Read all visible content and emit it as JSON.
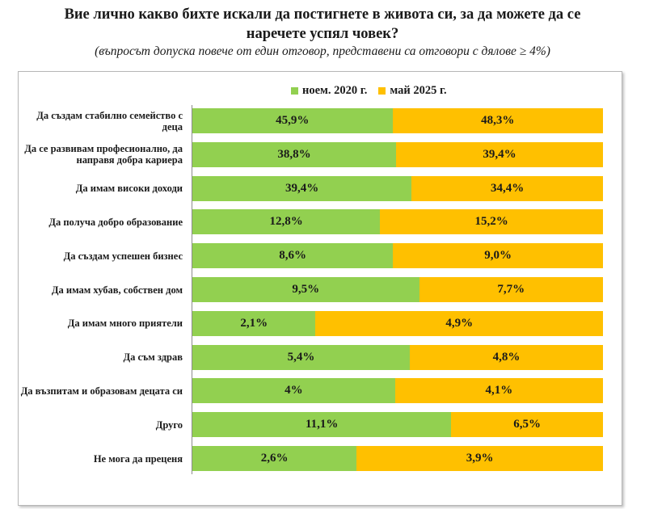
{
  "header": {
    "title_line1": "Вие лично какво бихте искали да постигнете в живота си, за да можете да се",
    "title_line2": "наречете успял човек?",
    "subtitle": "(въпросът допуска повече от един отговор, представени са отговори с дялове ≥ 4%)"
  },
  "chart_data": {
    "type": "bar",
    "orientation": "horizontal",
    "stacked": "100% stacked",
    "legend_position": "top",
    "colors": {
      "2020": "#92d050",
      "2025": "#ffc000"
    },
    "categories": [
      "Да създам стабилно семейство с деца",
      "Да се развивам професионално, да направя добра кариера",
      "Да имам високи доходи",
      "Да получа добро образование",
      "Да създам успешен бизнес",
      "Да имам хубав, собствен дом",
      "Да имам много приятели",
      "Да съм здрав",
      "Да възпитам и образовам децата си",
      "Друго",
      "Не мога да преценя"
    ],
    "series": [
      {
        "name": "ноем. 2020 г.",
        "values": [
          45.9,
          38.8,
          39.4,
          12.8,
          8.6,
          9.5,
          2.1,
          5.4,
          4,
          11.1,
          2.6
        ],
        "labels": [
          "45,9%",
          "38,8%",
          "39,4%",
          "12,8%",
          "8,6%",
          "9,5%",
          "2,1%",
          "5,4%",
          "4%",
          "11,1%",
          "2,6%"
        ]
      },
      {
        "name": "май 2025 г.",
        "values": [
          48.3,
          39.4,
          34.4,
          15.2,
          9.0,
          7.7,
          4.9,
          4.8,
          4.1,
          6.5,
          3.9
        ],
        "labels": [
          "48,3%",
          "39,4%",
          "34,4%",
          "15,2%",
          "9,0%",
          "7,7%",
          "4,9%",
          "4,8%",
          "4,1%",
          "6,5%",
          "3,9%"
        ]
      }
    ]
  }
}
